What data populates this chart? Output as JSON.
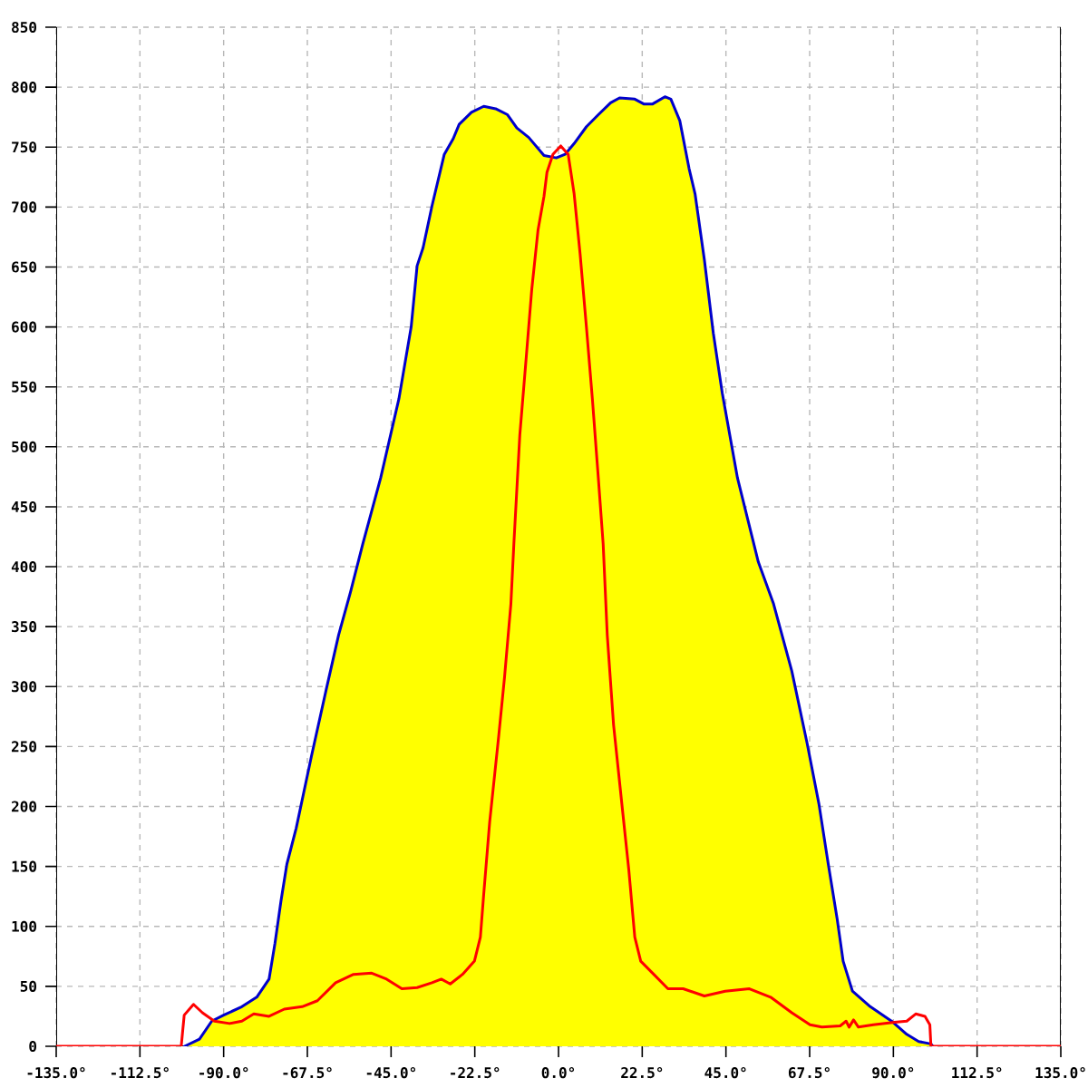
{
  "chart_data": {
    "type": "area",
    "xlim": [
      -135,
      135
    ],
    "ylim": [
      0,
      850
    ],
    "xticks": [
      {
        "value": -135,
        "label": "-135.0°"
      },
      {
        "value": -112.5,
        "label": "-112.5°"
      },
      {
        "value": -90,
        "label": "-90.0°"
      },
      {
        "value": -67.5,
        "label": "-67.5°"
      },
      {
        "value": -45,
        "label": "-45.0°"
      },
      {
        "value": -22.5,
        "label": "-22.5°"
      },
      {
        "value": 0,
        "label": "0.0°"
      },
      {
        "value": 22.5,
        "label": "22.5°"
      },
      {
        "value": 45,
        "label": "45.0°"
      },
      {
        "value": 67.5,
        "label": "67.5°"
      },
      {
        "value": 90,
        "label": "90.0°"
      },
      {
        "value": 112.5,
        "label": "112.5°"
      },
      {
        "value": 135,
        "label": "135.0°"
      }
    ],
    "yticks": [
      0,
      50,
      100,
      150,
      200,
      250,
      300,
      350,
      400,
      450,
      500,
      550,
      600,
      650,
      700,
      750,
      800,
      850
    ],
    "grid": true,
    "series": [
      {
        "color": "#ffff00",
        "x": [
          -100.5,
          -96.5,
          -93.2,
          -90,
          -85.1,
          -81.1,
          -77.8,
          -76.2,
          -74.6,
          -73,
          -70.5,
          -66.4,
          -62.4,
          -59.1,
          -55.9,
          -52.6,
          -47.8,
          -42.9,
          -39.6,
          -38,
          -36.4,
          -34,
          -30.7,
          -28.3,
          -26.7,
          -23.4,
          -20.1,
          -16.9,
          -13.7,
          -11.2,
          -8,
          -3.9,
          -0.6,
          1.8,
          4.2,
          7.5,
          10.7,
          14,
          16.4,
          20.5,
          22.9,
          25.3,
          28.6,
          30.2,
          32.6,
          35.1,
          36.7,
          39.2,
          41.6,
          44,
          48.1,
          52.1,
          53.7,
          57.8,
          62.7,
          66.8,
          70,
          72.5,
          74.9,
          76.5,
          79,
          83.8,
          89.5,
          93.6,
          96.8,
          100.1,
          100.6
        ],
        "values": [
          0,
          6,
          21,
          26,
          33,
          41,
          56,
          86,
          121,
          152,
          182,
          242,
          298,
          343,
          379,
          419,
          474,
          540,
          600,
          651,
          666,
          701,
          744,
          757,
          769,
          779,
          784,
          782,
          777,
          766,
          758,
          743,
          741,
          744,
          753,
          767,
          777,
          787,
          791,
          790,
          786,
          786,
          792,
          790,
          772,
          732,
          711,
          656,
          595,
          545,
          474,
          424,
          404,
          369,
          313,
          253,
          202,
          152,
          106,
          71,
          46,
          33,
          21,
          10,
          4,
          2,
          0
        ]
      },
      {
        "type": "line",
        "color": "#ff0000",
        "x": [
          -135,
          -101.4,
          -100.6,
          -98.1,
          -95.7,
          -92.5,
          -88.4,
          -85.1,
          -81.9,
          -77.8,
          -73.7,
          -68.9,
          -64.8,
          -59.9,
          -55.1,
          -50.2,
          -46.2,
          -42.1,
          -38,
          -34,
          -31.5,
          -29.1,
          -25.8,
          -22.6,
          -21,
          -20.1,
          -18.5,
          -16.1,
          -14.5,
          -12.8,
          -12,
          -10.4,
          -8.8,
          -7.2,
          -5.5,
          -3.9,
          -3.1,
          -1.5,
          0.6,
          2.6,
          4.2,
          5.8,
          7.5,
          9.1,
          10.7,
          12,
          13.1,
          14.8,
          17.2,
          18.9,
          20.5,
          22.1,
          25.3,
          29.4,
          33.5,
          39.2,
          44.8,
          51.3,
          57,
          62.7,
          67.6,
          70.8,
          75.7,
          77.3,
          78.1,
          79.3,
          80.6,
          84.6,
          90.3,
          93.6,
          96,
          98.5,
          99.8,
          100.1,
          135
        ],
        "values": [
          0,
          0,
          26,
          35,
          28,
          21,
          19,
          21,
          27,
          25,
          31,
          33,
          38,
          53,
          60,
          61,
          56,
          48,
          49,
          53,
          56,
          52,
          60,
          71,
          91,
          127,
          187,
          258,
          308,
          369,
          419,
          510,
          570,
          631,
          681,
          709,
          729,
          744,
          751,
          744,
          711,
          661,
          600,
          540,
          474,
          419,
          343,
          268,
          197,
          147,
          91,
          71,
          61,
          48,
          48,
          42,
          46,
          48,
          41,
          28,
          18,
          16,
          17,
          21,
          16,
          22,
          16,
          18,
          20,
          21,
          27,
          25,
          18,
          0,
          0
        ]
      }
    ]
  }
}
